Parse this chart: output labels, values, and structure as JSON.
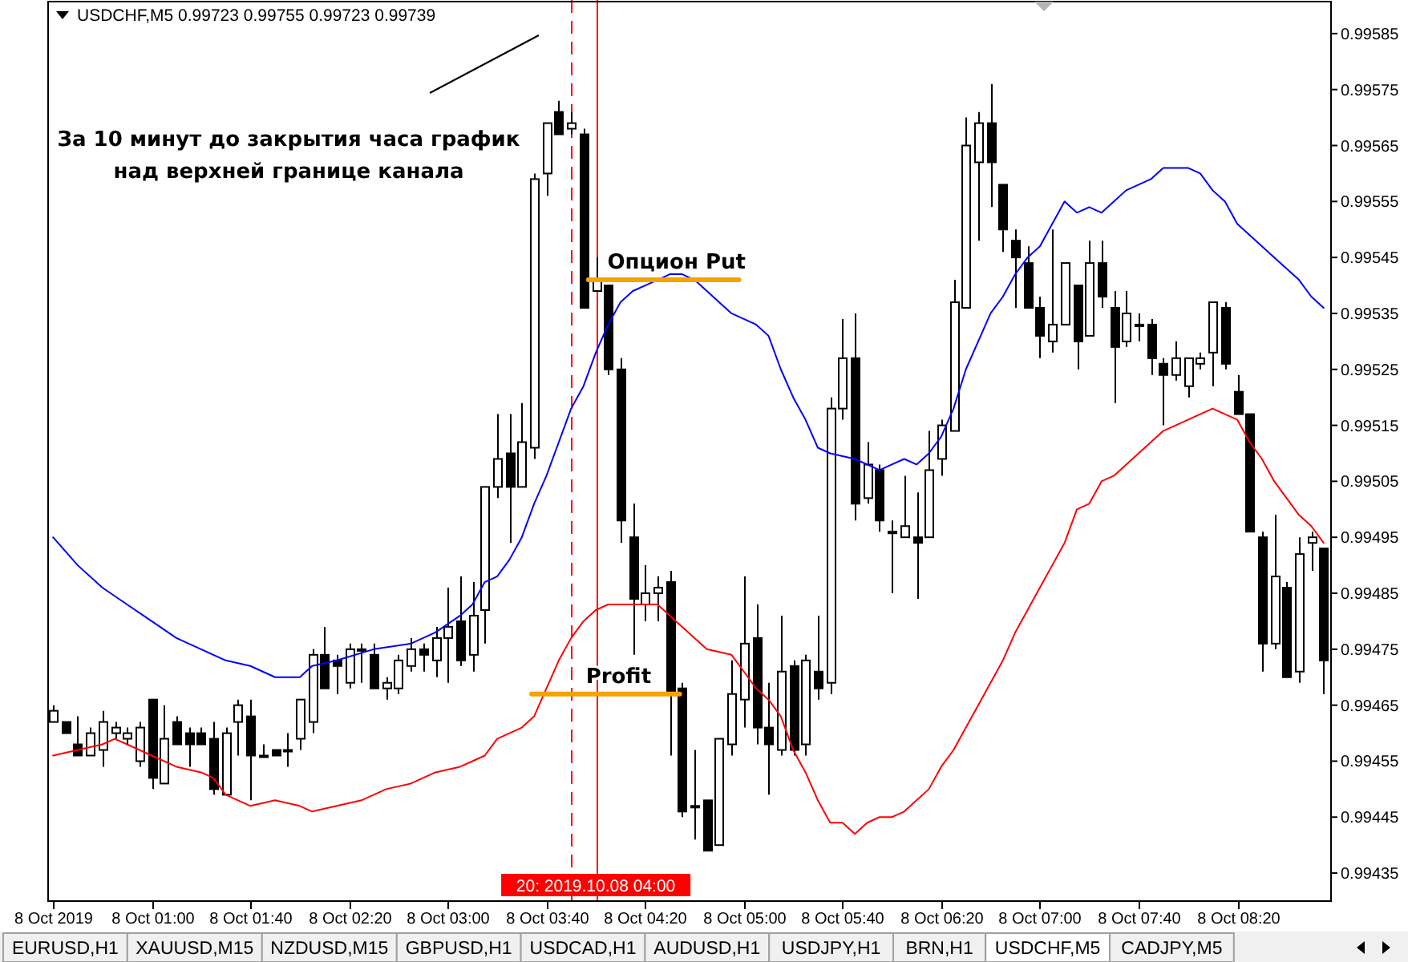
{
  "chart_data": {
    "type": "candlestick",
    "title": "USDCHF,M5  0.99723 0.99755 0.99723 0.99739",
    "annotations": [
      "За 10 минут до закрытия часа график над верхней границе канала",
      "EURUSD,H1",
      "XAUUSD,M15",
      "NZDUSD,M15",
      "GBPUSD,H1",
      "USDCAD,H1",
      "AUDUSD,H1",
      "USDJPY,H1",
      "BRN,H1",
      "USDCHF,M5",
      "CADJPY,M5"
    ],
    "xlim": [
      "2019-10-08T00:18",
      "2019-10-08T08:58"
    ],
    "ylim": [
      0.9943,
      0.99591
    ],
    "xticks": [
      {
        "value": "2019-10-08T00:20",
        "label": "8 Oct 2019"
      },
      {
        "value": "2019-10-08T01:00",
        "label": "8 Oct 01:00"
      },
      {
        "value": "2019-10-08T01:40",
        "label": "8 Oct 01:40"
      },
      {
        "value": "2019-10-08T02:20",
        "label": "8 Oct 02:20"
      },
      {
        "value": "2019-10-08T03:00",
        "label": "8 Oct 03:00"
      },
      {
        "value": "2019-10-08T03:40",
        "label": "8 Oct 03:40"
      },
      {
        "value": "2019-10-08T04:20",
        "label": "8 Oct 04:20"
      },
      {
        "value": "2019-10-08T05:00",
        "label": "8 Oct 05:00"
      },
      {
        "value": "2019-10-08T05:40",
        "label": "8 Oct 05:40"
      },
      {
        "value": "2019-10-08T06:20",
        "label": "8 Oct 06:20"
      },
      {
        "value": "2019-10-08T07:00",
        "label": "8 Oct 07:00"
      },
      {
        "value": "2019-10-08T07:40",
        "label": "8 Oct 07:40"
      },
      {
        "value": "2019-10-08T08:20",
        "label": "8 Oct 08:20"
      }
    ],
    "yticks": [
      0.99585,
      0.99575,
      0.99565,
      0.99555,
      0.99545,
      0.99535,
      0.99525,
      0.99515,
      0.99505,
      0.99495,
      0.99485,
      0.99475,
      0.99465,
      0.99455,
      0.99445,
      0.99435
    ],
    "ref_lines": [
      {
        "axis": "x",
        "value": "2019-10-08T03:50",
        "color": "#ff0000",
        "line_style": "dashed"
      },
      {
        "axis": "x",
        "value": "2019-10-08T04:00",
        "label": "20: 2019.10.08 04:00",
        "color": "#ff0000"
      }
    ],
    "x": [
      "2019-10-08T00:20",
      "2019-10-08T00:25",
      "2019-10-08T00:30",
      "2019-10-08T00:35",
      "2019-10-08T00:40",
      "2019-10-08T00:45",
      "2019-10-08T00:50",
      "2019-10-08T00:55",
      "2019-10-08T01:00",
      "2019-10-08T01:05",
      "2019-10-08T01:10",
      "2019-10-08T01:15",
      "2019-10-08T01:20",
      "2019-10-08T01:25",
      "2019-10-08T01:30",
      "2019-10-08T01:35",
      "2019-10-08T01:40",
      "2019-10-08T01:45",
      "2019-10-08T01:50",
      "2019-10-08T01:55",
      "2019-10-08T02:00",
      "2019-10-08T02:05",
      "2019-10-08T02:10",
      "2019-10-08T02:15",
      "2019-10-08T02:20",
      "2019-10-08T02:25",
      "2019-10-08T02:30",
      "2019-10-08T02:35",
      "2019-10-08T02:40",
      "2019-10-08T02:45",
      "2019-10-08T02:50",
      "2019-10-08T02:55",
      "2019-10-08T03:00",
      "2019-10-08T03:05",
      "2019-10-08T03:10",
      "2019-10-08T03:15",
      "2019-10-08T03:20",
      "2019-10-08T03:25",
      "2019-10-08T03:30",
      "2019-10-08T03:35",
      "2019-10-08T03:40",
      "2019-10-08T03:45",
      "2019-10-08T03:50",
      "2019-10-08T03:55",
      "2019-10-08T04:00",
      "2019-10-08T04:05",
      "2019-10-08T04:10",
      "2019-10-08T04:15",
      "2019-10-08T04:20",
      "2019-10-08T04:25",
      "2019-10-08T04:30",
      "2019-10-08T04:35",
      "2019-10-08T04:40",
      "2019-10-08T04:45",
      "2019-10-08T04:50",
      "2019-10-08T04:55",
      "2019-10-08T05:00",
      "2019-10-08T05:05",
      "2019-10-08T05:10",
      "2019-10-08T05:15",
      "2019-10-08T05:20",
      "2019-10-08T05:25",
      "2019-10-08T05:30",
      "2019-10-08T05:35",
      "2019-10-08T05:40",
      "2019-10-08T05:45",
      "2019-10-08T05:50",
      "2019-10-08T05:55",
      "2019-10-08T06:00",
      "2019-10-08T06:05",
      "2019-10-08T06:10",
      "2019-10-08T06:15",
      "2019-10-08T06:20",
      "2019-10-08T06:25",
      "2019-10-08T06:30",
      "2019-10-08T06:35",
      "2019-10-08T06:40",
      "2019-10-08T06:45",
      "2019-10-08T06:50",
      "2019-10-08T06:55",
      "2019-10-08T07:00",
      "2019-10-08T07:05",
      "2019-10-08T07:10",
      "2019-10-08T07:15",
      "2019-10-08T07:20",
      "2019-10-08T07:25",
      "2019-10-08T07:30",
      "2019-10-08T07:35",
      "2019-10-08T07:40",
      "2019-10-08T07:45",
      "2019-10-08T07:50",
      "2019-10-08T07:55",
      "2019-10-08T08:00",
      "2019-10-08T08:05",
      "2019-10-08T08:10",
      "2019-10-08T08:15",
      "2019-10-08T08:20",
      "2019-10-08T08:25",
      "2019-10-08T08:30",
      "2019-10-08T08:35",
      "2019-10-08T08:40",
      "2019-10-08T08:45",
      "2019-10-08T08:50",
      "2019-10-08T08:55"
    ],
    "ohlc": [
      [
        0.99462,
        0.99465,
        0.99462,
        0.99464
      ],
      [
        0.99462,
        0.99462,
        0.9946,
        0.9946
      ],
      [
        0.99458,
        0.99463,
        0.99456,
        0.99456
      ],
      [
        0.99456,
        0.99461,
        0.99456,
        0.9946
      ],
      [
        0.99457,
        0.99464,
        0.99454,
        0.99462
      ],
      [
        0.9946,
        0.99462,
        0.99459,
        0.99461
      ],
      [
        0.99459,
        0.99461,
        0.99458,
        0.9946
      ],
      [
        0.99455,
        0.99462,
        0.99454,
        0.99461
      ],
      [
        0.99466,
        0.99466,
        0.9945,
        0.99452
      ],
      [
        0.99451,
        0.99465,
        0.99451,
        0.99459
      ],
      [
        0.99462,
        0.99463,
        0.99458,
        0.99458
      ],
      [
        0.9946,
        0.99461,
        0.99454,
        0.99458
      ],
      [
        0.9946,
        0.99461,
        0.99458,
        0.99458
      ],
      [
        0.99459,
        0.99462,
        0.99449,
        0.9945
      ],
      [
        0.99449,
        0.99461,
        0.99449,
        0.9946
      ],
      [
        0.99462,
        0.99466,
        0.99456,
        0.99465
      ],
      [
        0.99463,
        0.99466,
        0.99448,
        0.99456
      ],
      [
        0.99456,
        0.99458,
        0.99456,
        0.99456
      ],
      [
        0.99457,
        0.99457,
        0.99456,
        0.99456
      ],
      [
        0.99457,
        0.9946,
        0.99454,
        0.99457
      ],
      [
        0.99459,
        0.99466,
        0.99457,
        0.99466
      ],
      [
        0.99462,
        0.99475,
        0.9946,
        0.99474
      ],
      [
        0.99474,
        0.99479,
        0.99468,
        0.99468
      ],
      [
        0.99473,
        0.99474,
        0.99467,
        0.99472
      ],
      [
        0.99469,
        0.99476,
        0.99468,
        0.99475
      ],
      [
        0.99475,
        0.99476,
        0.99469,
        0.99475
      ],
      [
        0.99474,
        0.99476,
        0.99468,
        0.99468
      ],
      [
        0.99468,
        0.9947,
        0.99466,
        0.99469
      ],
      [
        0.99468,
        0.99474,
        0.99467,
        0.99473
      ],
      [
        0.99472,
        0.99477,
        0.99471,
        0.99475
      ],
      [
        0.99475,
        0.99476,
        0.99471,
        0.99474
      ],
      [
        0.99473,
        0.99479,
        0.9947,
        0.99477
      ],
      [
        0.99477,
        0.99486,
        0.99469,
        0.99479
      ],
      [
        0.9948,
        0.99488,
        0.99472,
        0.99473
      ],
      [
        0.99474,
        0.99487,
        0.99471,
        0.99481
      ],
      [
        0.99482,
        0.99504,
        0.99476,
        0.99504
      ],
      [
        0.99504,
        0.99517,
        0.99502,
        0.99509
      ],
      [
        0.9951,
        0.99517,
        0.99494,
        0.99504
      ],
      [
        0.99504,
        0.99519,
        0.99504,
        0.99512
      ],
      [
        0.99511,
        0.9956,
        0.99509,
        0.99559
      ],
      [
        0.9956,
        0.99569,
        0.99556,
        0.99569
      ],
      [
        0.99571,
        0.99573,
        0.99567,
        0.99567
      ],
      [
        0.99568,
        0.99571,
        0.99567,
        0.99569
      ],
      [
        0.99567,
        0.99568,
        0.99536,
        0.99536
      ],
      [
        0.99539,
        0.99545,
        0.99539,
        0.99541
      ],
      [
        0.9954,
        0.9954,
        0.99524,
        0.99525
      ],
      [
        0.99525,
        0.99527,
        0.99494,
        0.99498
      ],
      [
        0.99495,
        0.99501,
        0.99474,
        0.99484
      ],
      [
        0.99483,
        0.9949,
        0.9948,
        0.99485
      ],
      [
        0.99485,
        0.99488,
        0.9948,
        0.99486
      ],
      [
        0.99487,
        0.99489,
        0.99456,
        0.99467
      ],
      [
        0.99468,
        0.99469,
        0.99445,
        0.99446
      ],
      [
        0.99447,
        0.99457,
        0.99441,
        0.99447
      ],
      [
        0.99448,
        0.99448,
        0.99439,
        0.99439
      ],
      [
        0.9944,
        0.99459,
        0.9944,
        0.99459
      ],
      [
        0.99458,
        0.99473,
        0.99456,
        0.99467
      ],
      [
        0.99466,
        0.99488,
        0.99461,
        0.99476
      ],
      [
        0.99477,
        0.99483,
        0.99458,
        0.99461
      ],
      [
        0.99461,
        0.99469,
        0.99449,
        0.99458
      ],
      [
        0.99457,
        0.99481,
        0.99456,
        0.99471
      ],
      [
        0.99472,
        0.99473,
        0.99456,
        0.99457
      ],
      [
        0.99458,
        0.99474,
        0.99456,
        0.99473
      ],
      [
        0.99471,
        0.99481,
        0.99466,
        0.99468
      ],
      [
        0.99469,
        0.9952,
        0.99467,
        0.99518
      ],
      [
        0.99518,
        0.99534,
        0.99516,
        0.99527
      ],
      [
        0.99527,
        0.99535,
        0.99498,
        0.99501
      ],
      [
        0.99502,
        0.99512,
        0.99501,
        0.99508
      ],
      [
        0.99507,
        0.99508,
        0.99496,
        0.99498
      ],
      [
        0.99496,
        0.99498,
        0.99485,
        0.99496
      ],
      [
        0.99495,
        0.99506,
        0.99495,
        0.99497
      ],
      [
        0.99495,
        0.99503,
        0.99484,
        0.99494
      ],
      [
        0.99495,
        0.99514,
        0.99495,
        0.99507
      ],
      [
        0.99509,
        0.99516,
        0.99506,
        0.99515
      ],
      [
        0.99514,
        0.99541,
        0.99514,
        0.99537
      ],
      [
        0.99536,
        0.9957,
        0.99536,
        0.99565
      ],
      [
        0.99562,
        0.99571,
        0.99548,
        0.99569
      ],
      [
        0.99569,
        0.99576,
        0.99554,
        0.99562
      ],
      [
        0.99558,
        0.99558,
        0.99546,
        0.9955
      ],
      [
        0.99548,
        0.9955,
        0.99536,
        0.99545
      ],
      [
        0.99544,
        0.99547,
        0.99536,
        0.99536
      ],
      [
        0.99536,
        0.99538,
        0.99527,
        0.99531
      ],
      [
        0.9953,
        0.9955,
        0.99528,
        0.99533
      ],
      [
        0.99533,
        0.99544,
        0.99533,
        0.99544
      ],
      [
        0.9954,
        0.9954,
        0.99525,
        0.9953
      ],
      [
        0.99531,
        0.99548,
        0.99531,
        0.99544
      ],
      [
        0.99544,
        0.99548,
        0.99536,
        0.99538
      ],
      [
        0.99536,
        0.99539,
        0.99519,
        0.99529
      ],
      [
        0.9953,
        0.99539,
        0.99529,
        0.99535
      ],
      [
        0.99533,
        0.99535,
        0.9953,
        0.99533
      ],
      [
        0.99533,
        0.99534,
        0.99524,
        0.99527
      ],
      [
        0.99526,
        0.99527,
        0.99515,
        0.99524
      ],
      [
        0.99524,
        0.9953,
        0.99523,
        0.99527
      ],
      [
        0.99522,
        0.99527,
        0.9952,
        0.99527
      ],
      [
        0.99526,
        0.99528,
        0.99525,
        0.99527
      ],
      [
        0.99528,
        0.99537,
        0.99522,
        0.99537
      ],
      [
        0.99536,
        0.99537,
        0.99525,
        0.99526
      ],
      [
        0.99521,
        0.99524,
        0.99517,
        0.99517
      ],
      [
        0.99517,
        0.99517,
        0.99496,
        0.99496
      ],
      [
        0.99495,
        0.99496,
        0.99471,
        0.99476
      ],
      [
        0.99476,
        0.99499,
        0.99475,
        0.99488
      ],
      [
        0.99486,
        0.99487,
        0.9947,
        0.9947
      ],
      [
        0.99471,
        0.99495,
        0.99469,
        0.99492
      ],
      [
        0.99494,
        0.99496,
        0.99489,
        0.99495
      ],
      [
        0.99493,
        0.99493,
        0.99467,
        0.99473
      ]
    ],
    "series": [
      {
        "type": "line",
        "color": "#0000ff",
        "x": [
          "2019-10-08T00:20",
          "2019-10-08T00:30",
          "2019-10-08T00:40",
          "2019-10-08T00:50",
          "2019-10-08T01:00",
          "2019-10-08T01:10",
          "2019-10-08T01:20",
          "2019-10-08T01:30",
          "2019-10-08T01:40",
          "2019-10-08T01:50",
          "2019-10-08T01:55",
          "2019-10-08T02:00",
          "2019-10-08T02:05",
          "2019-10-08T02:15",
          "2019-10-08T02:30",
          "2019-10-08T02:45",
          "2019-10-08T02:55",
          "2019-10-08T03:05",
          "2019-10-08T03:10",
          "2019-10-08T03:15",
          "2019-10-08T03:20",
          "2019-10-08T03:25",
          "2019-10-08T03:30",
          "2019-10-08T03:35",
          "2019-10-08T03:40",
          "2019-10-08T03:45",
          "2019-10-08T03:50",
          "2019-10-08T03:55",
          "2019-10-08T04:00",
          "2019-10-08T04:05",
          "2019-10-08T04:10",
          "2019-10-08T04:15",
          "2019-10-08T04:20",
          "2019-10-08T04:25",
          "2019-10-08T04:30",
          "2019-10-08T04:35",
          "2019-10-08T04:40",
          "2019-10-08T04:45",
          "2019-10-08T04:50",
          "2019-10-08T04:55",
          "2019-10-08T05:00",
          "2019-10-08T05:05",
          "2019-10-08T05:10",
          "2019-10-08T05:15",
          "2019-10-08T05:20",
          "2019-10-08T05:25",
          "2019-10-08T05:30",
          "2019-10-08T05:35",
          "2019-10-08T05:45",
          "2019-10-08T05:55",
          "2019-10-08T06:00",
          "2019-10-08T06:05",
          "2019-10-08T06:10",
          "2019-10-08T06:15",
          "2019-10-08T06:20",
          "2019-10-08T06:25",
          "2019-10-08T06:30",
          "2019-10-08T06:35",
          "2019-10-08T06:40",
          "2019-10-08T06:45",
          "2019-10-08T06:50",
          "2019-10-08T06:55",
          "2019-10-08T07:00",
          "2019-10-08T07:05",
          "2019-10-08T07:10",
          "2019-10-08T07:15",
          "2019-10-08T07:20",
          "2019-10-08T07:25",
          "2019-10-08T07:30",
          "2019-10-08T07:35",
          "2019-10-08T07:40",
          "2019-10-08T07:45",
          "2019-10-08T07:50",
          "2019-10-08T07:55",
          "2019-10-08T08:00",
          "2019-10-08T08:05",
          "2019-10-08T08:10",
          "2019-10-08T08:15",
          "2019-10-08T08:20",
          "2019-10-08T08:25",
          "2019-10-08T08:35",
          "2019-10-08T08:45",
          "2019-10-08T08:50",
          "2019-10-08T08:55"
        ],
        "values": [
          0.99495,
          0.9949,
          0.99486,
          0.99483,
          0.9948,
          0.99477,
          0.99475,
          0.99473,
          0.99472,
          0.9947,
          0.9947,
          0.9947,
          0.99472,
          0.99473,
          0.99475,
          0.99476,
          0.99478,
          0.99481,
          0.99483,
          0.99487,
          0.99488,
          0.99491,
          0.99495,
          0.99501,
          0.99506,
          0.99512,
          0.99518,
          0.99522,
          0.99528,
          0.99533,
          0.99537,
          0.99539,
          0.9954,
          0.99541,
          0.99542,
          0.99542,
          0.99541,
          0.99539,
          0.99537,
          0.99535,
          0.99534,
          0.99533,
          0.99531,
          0.99525,
          0.9952,
          0.99516,
          0.99511,
          0.9951,
          0.99509,
          0.99507,
          0.99508,
          0.99509,
          0.99508,
          0.9951,
          0.99513,
          0.99518,
          0.99525,
          0.9953,
          0.99535,
          0.99538,
          0.99542,
          0.99545,
          0.99547,
          0.99551,
          0.99555,
          0.99553,
          0.99554,
          0.99553,
          0.99555,
          0.99557,
          0.99558,
          0.99559,
          0.99561,
          0.99561,
          0.99561,
          0.9956,
          0.99557,
          0.99555,
          0.99551,
          0.99549,
          0.99545,
          0.99541,
          0.99538,
          0.99536
        ]
      },
      {
        "type": "line",
        "color": "#ff0000",
        "x": [
          "2019-10-08T00:20",
          "2019-10-08T00:30",
          "2019-10-08T00:40",
          "2019-10-08T00:45",
          "2019-10-08T00:50",
          "2019-10-08T01:00",
          "2019-10-08T01:10",
          "2019-10-08T01:20",
          "2019-10-08T01:25",
          "2019-10-08T01:30",
          "2019-10-08T01:40",
          "2019-10-08T01:50",
          "2019-10-08T02:00",
          "2019-10-08T02:05",
          "2019-10-08T02:15",
          "2019-10-08T02:25",
          "2019-10-08T02:35",
          "2019-10-08T02:45",
          "2019-10-08T02:55",
          "2019-10-08T03:05",
          "2019-10-08T03:10",
          "2019-10-08T03:15",
          "2019-10-08T03:20",
          "2019-10-08T03:25",
          "2019-10-08T03:30",
          "2019-10-08T03:35",
          "2019-10-08T03:40",
          "2019-10-08T03:45",
          "2019-10-08T03:50",
          "2019-10-08T03:55",
          "2019-10-08T04:00",
          "2019-10-08T04:05",
          "2019-10-08T04:15",
          "2019-10-08T04:25",
          "2019-10-08T04:30",
          "2019-10-08T04:35",
          "2019-10-08T04:45",
          "2019-10-08T04:55",
          "2019-10-08T05:00",
          "2019-10-08T05:05",
          "2019-10-08T05:10",
          "2019-10-08T05:15",
          "2019-10-08T05:20",
          "2019-10-08T05:25",
          "2019-10-08T05:30",
          "2019-10-08T05:35",
          "2019-10-08T05:40",
          "2019-10-08T05:45",
          "2019-10-08T05:50",
          "2019-10-08T05:55",
          "2019-10-08T06:00",
          "2019-10-08T06:05",
          "2019-10-08T06:10",
          "2019-10-08T06:15",
          "2019-10-08T06:20",
          "2019-10-08T06:25",
          "2019-10-08T06:30",
          "2019-10-08T06:35",
          "2019-10-08T06:40",
          "2019-10-08T06:45",
          "2019-10-08T06:50",
          "2019-10-08T06:55",
          "2019-10-08T07:00",
          "2019-10-08T07:05",
          "2019-10-08T07:10",
          "2019-10-08T07:15",
          "2019-10-08T07:20",
          "2019-10-08T07:25",
          "2019-10-08T07:30",
          "2019-10-08T07:35",
          "2019-10-08T07:40",
          "2019-10-08T07:45",
          "2019-10-08T07:50",
          "2019-10-08T07:55",
          "2019-10-08T08:00",
          "2019-10-08T08:05",
          "2019-10-08T08:10",
          "2019-10-08T08:15",
          "2019-10-08T08:20",
          "2019-10-08T08:25",
          "2019-10-08T08:30",
          "2019-10-08T08:35",
          "2019-10-08T08:40",
          "2019-10-08T08:45",
          "2019-10-08T08:50",
          "2019-10-08T08:55"
        ],
        "values": [
          0.99456,
          0.99457,
          0.99458,
          0.99459,
          0.99458,
          0.99456,
          0.99454,
          0.99453,
          0.99452,
          0.99449,
          0.99447,
          0.99448,
          0.99447,
          0.99446,
          0.99447,
          0.99448,
          0.9945,
          0.99451,
          0.99453,
          0.99454,
          0.99455,
          0.99456,
          0.99459,
          0.9946,
          0.99461,
          0.99463,
          0.99468,
          0.99473,
          0.99477,
          0.9948,
          0.99482,
          0.99483,
          0.99483,
          0.99483,
          0.99481,
          0.99479,
          0.99475,
          0.99474,
          0.99471,
          0.99468,
          0.99466,
          0.99463,
          0.99457,
          0.99453,
          0.99448,
          0.99444,
          0.99444,
          0.99442,
          0.99444,
          0.99445,
          0.99445,
          0.99446,
          0.99448,
          0.9945,
          0.99454,
          0.99457,
          0.99461,
          0.99465,
          0.99469,
          0.99473,
          0.99478,
          0.99482,
          0.99486,
          0.9949,
          0.99494,
          0.995,
          0.99501,
          0.99505,
          0.99506,
          0.99508,
          0.9951,
          0.99512,
          0.99514,
          0.99515,
          0.99516,
          0.99517,
          0.99518,
          0.99517,
          0.99516,
          0.99512,
          0.99509,
          0.99505,
          0.99502,
          0.99499,
          0.99497,
          0.99494
        ]
      },
      {
        "type": "line",
        "name": "Опцион Put",
        "color": "#f5a300",
        "x": [
          "2019-10-08T03:57",
          "2019-10-08T04:58"
        ],
        "values": [
          0.99541,
          0.99541
        ]
      },
      {
        "type": "line",
        "name": "Profit",
        "color": "#f5a300",
        "x": [
          "2019-10-08T03:34",
          "2019-10-08T04:34"
        ],
        "values": [
          0.99467,
          0.99467
        ]
      }
    ]
  }
}
